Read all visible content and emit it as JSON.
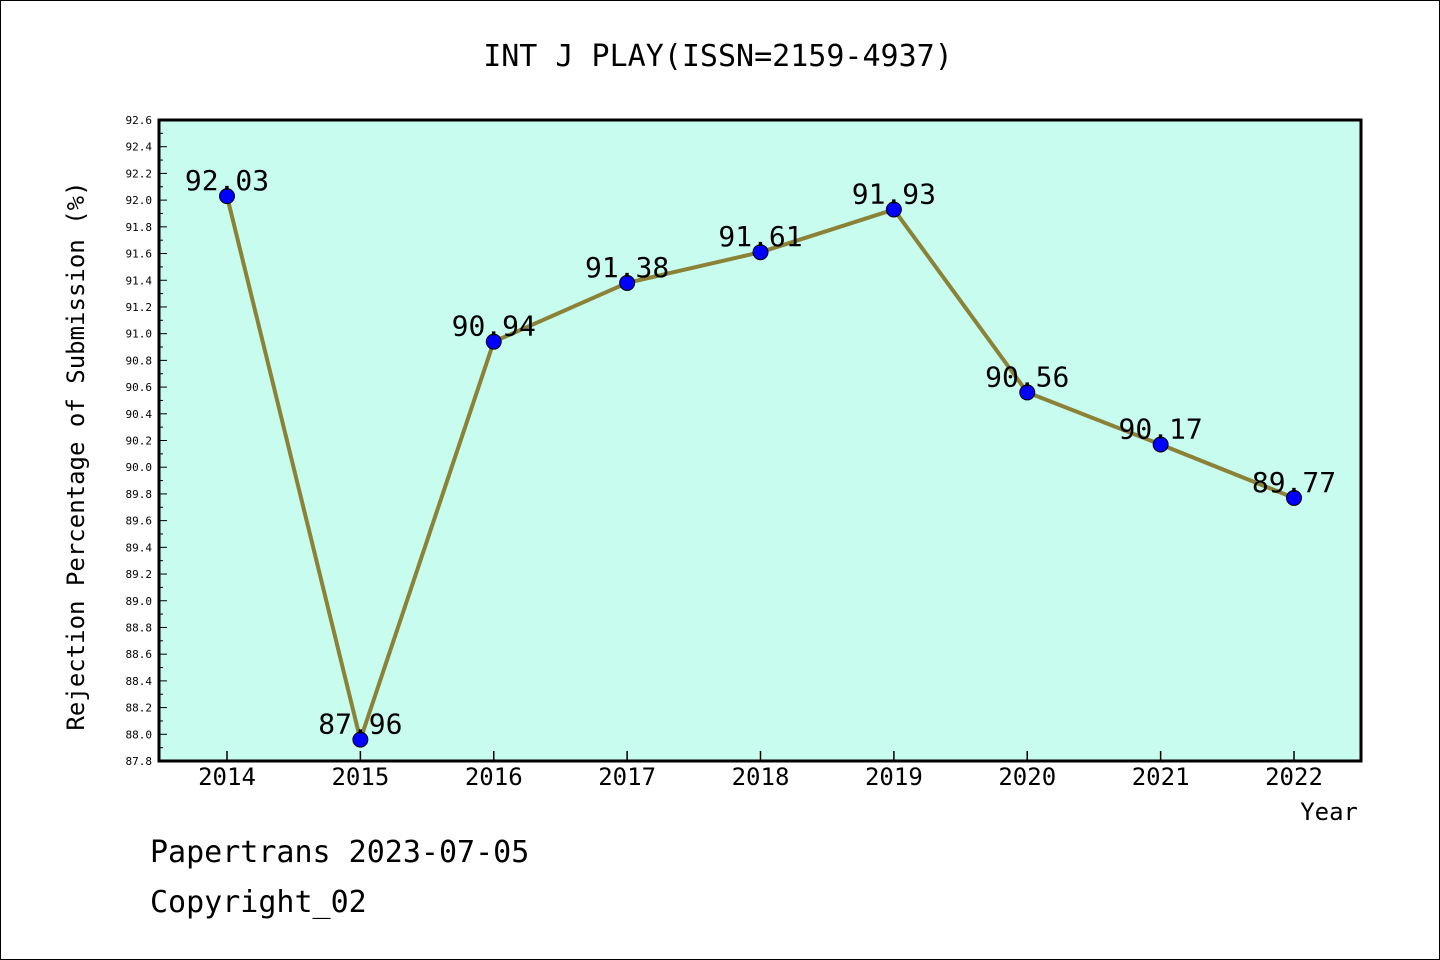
{
  "chart_data": {
    "type": "line",
    "title": "INT J PLAY(ISSN=2159-4937)",
    "xlabel": "Year",
    "ylabel": "Rejection Percentage of Submission (%)",
    "categories": [
      "2014",
      "2015",
      "2016",
      "2017",
      "2018",
      "2019",
      "2020",
      "2021",
      "2022"
    ],
    "values": [
      92.03,
      87.96,
      90.94,
      91.38,
      91.61,
      91.93,
      90.56,
      90.17,
      89.77
    ],
    "data_labels": [
      "92.03",
      "87.96",
      "90.94",
      "91.38",
      "91.61",
      "91.93",
      "90.56",
      "90.17",
      "89.77"
    ],
    "ylim": [
      87.8,
      92.6
    ],
    "yticks": [
      "87.8",
      "88.0",
      "88.2",
      "88.4",
      "88.6",
      "88.8",
      "89.0",
      "89.2",
      "89.4",
      "89.6",
      "89.8",
      "90.0",
      "90.2",
      "90.4",
      "90.6",
      "90.8",
      "91.0",
      "91.2",
      "91.4",
      "91.6",
      "91.8",
      "92.0",
      "92.2",
      "92.4",
      "92.6"
    ],
    "grid": false,
    "colors": {
      "plot_background": "#c8fcee",
      "line": "#8b8238",
      "marker": "#0000ff"
    }
  },
  "footer": {
    "line1": "Papertrans 2023-07-05",
    "line2": "Copyright_02"
  }
}
